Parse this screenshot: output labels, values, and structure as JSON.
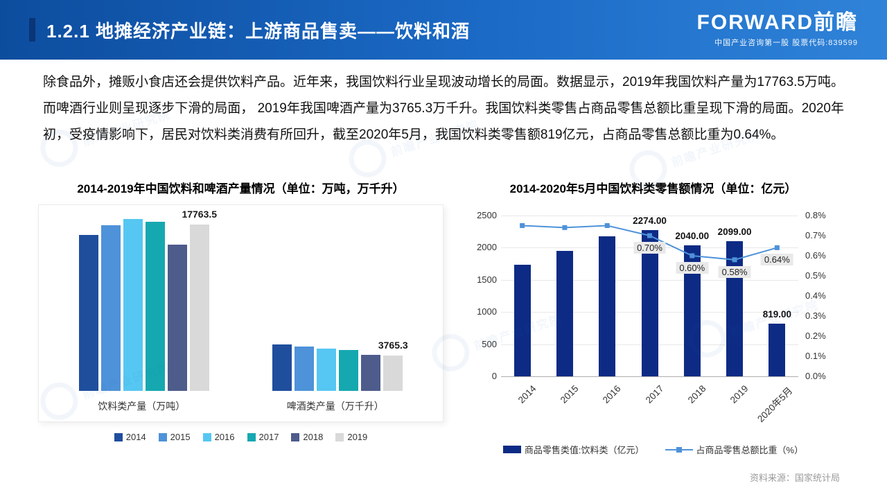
{
  "header": {
    "title": "1.2.1 地摊经济产业链：上游商品售卖——饮料和酒",
    "logo_text": "FORWARD前瞻",
    "logo_subtext": "中国产业咨询第一股  股票代码:839599"
  },
  "body_paragraph": "除食品外，摊贩小食店还会提供饮料产品。近年来，我国饮料行业呈现波动增长的局面。数据显示，2019年我国饮料产量为17763.5万吨。而啤酒行业则呈现逐步下滑的局面， 2019年我国啤酒产量为3765.3万千升。我国饮料类零售占商品零售总额比重呈现下滑的局面。2020年初，受疫情影响下，居民对饮料类消费有所回升，截至2020年5月，我国饮料类零售额819亿元，占商品零售总额比重为0.64%。",
  "footer": {
    "source": "资料来源：国家统计局"
  },
  "watermark": "前瞻产业研究院",
  "chart_data": [
    {
      "type": "bar",
      "title": "2014-2019年中国饮料和啤酒产量情况（单位：万吨，万千升）",
      "categories": [
        "饮料类产量（万吨）",
        "啤酒类产量（万千升）"
      ],
      "series": [
        {
          "name": "2014",
          "color": "#1F4E9D",
          "values": [
            16676.7,
            4921.9
          ]
        },
        {
          "name": "2015",
          "color": "#4E92D9",
          "values": [
            17661.0,
            4715.7
          ]
        },
        {
          "name": "2016",
          "color": "#56C7F2",
          "values": [
            18345.2,
            4506.4
          ]
        },
        {
          "name": "2017",
          "color": "#16A8B0",
          "values": [
            18051.2,
            4401.5
          ]
        },
        {
          "name": "2018",
          "color": "#4E5C8C",
          "values": [
            15634.8,
            3812.2
          ]
        },
        {
          "name": "2019",
          "color": "#D9D9D9",
          "values": [
            17763.5,
            3765.3
          ],
          "data_labels": [
            "17763.5",
            "3765.3"
          ]
        }
      ],
      "ylim": [
        0,
        18500
      ],
      "grid": false,
      "legend_position": "bottom"
    },
    {
      "type": "combo-bar-line",
      "title": "2014-2020年5月中国饮料类零售额情况（单位：亿元）",
      "categories": [
        "2014",
        "2015",
        "2016",
        "2017",
        "2018",
        "2019",
        "2020年5月"
      ],
      "bar_series": {
        "name": "商品零售类值:饮料类（亿元）",
        "color": "#0D2B85",
        "values": [
          1731,
          1955,
          2173,
          2274,
          2040,
          2099,
          819
        ],
        "data_labels": [
          null,
          null,
          null,
          "2274.00",
          "2040.00",
          "2099.00",
          "819.00"
        ]
      },
      "line_series": {
        "name": "占商品零售总额比重（%）",
        "color": "#4E92D9",
        "values": [
          0.75,
          0.74,
          0.75,
          0.7,
          0.6,
          0.58,
          0.64
        ],
        "data_labels": [
          null,
          null,
          null,
          "0.70%",
          "0.60%",
          "0.58%",
          "0.64%"
        ]
      },
      "left_axis": {
        "min": 0,
        "max": 2500,
        "ticks": [
          "2500",
          "2000",
          "1500",
          "1000",
          "500",
          "0"
        ]
      },
      "right_axis": {
        "min": 0.0,
        "max": 0.8,
        "ticks": [
          "0.8%",
          "0.7%",
          "0.6%",
          "0.5%",
          "0.4%",
          "0.3%",
          "0.2%",
          "0.1%",
          "0.0%"
        ]
      },
      "grid": true,
      "legend_position": "bottom"
    }
  ]
}
